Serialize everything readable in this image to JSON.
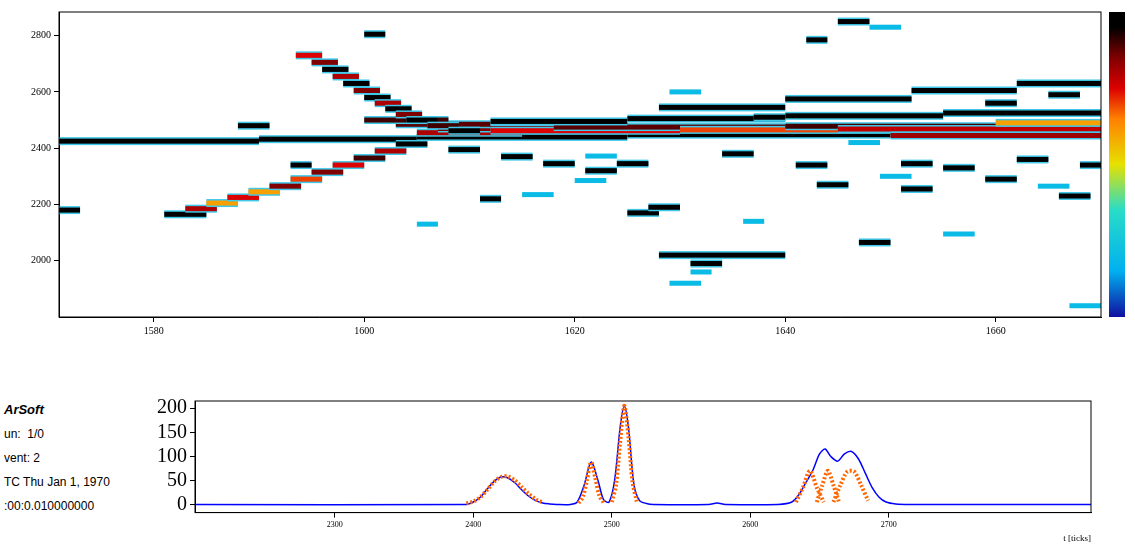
{
  "chart_data": [
    {
      "type": "heatmap",
      "xlim": [
        1571,
        1670
      ],
      "xticks": [
        1580,
        1600,
        1620,
        1640,
        1660
      ],
      "ylim": [
        1800,
        2884
      ],
      "yticks": [
        2000,
        2200,
        2400,
        2600,
        2800
      ],
      "grid": false,
      "colorbar_range": [
        0,
        100
      ],
      "cells": [
        [
          1571,
          1590,
          2425,
          95
        ],
        [
          1590,
          1605,
          2432,
          95
        ],
        [
          1605,
          1625,
          2440,
          95
        ],
        [
          1625,
          1650,
          2448,
          95
        ],
        [
          1650,
          1670,
          2456,
          95
        ],
        [
          1605,
          1615,
          2455,
          80
        ],
        [
          1607,
          1620,
          2470,
          85
        ],
        [
          1612,
          1630,
          2462,
          75
        ],
        [
          1618,
          1640,
          2475,
          88
        ],
        [
          1630,
          1650,
          2465,
          70
        ],
        [
          1640,
          1670,
          2478,
          90
        ],
        [
          1645,
          1670,
          2468,
          78
        ],
        [
          1650,
          1670,
          2445,
          82
        ],
        [
          1660,
          1670,
          2490,
          60
        ],
        [
          1603,
          1612,
          2485,
          88
        ],
        [
          1600,
          1608,
          2500,
          90
        ],
        [
          1612,
          1625,
          2495,
          95
        ],
        [
          1625,
          1640,
          2505,
          95
        ],
        [
          1640,
          1655,
          2515,
          95
        ],
        [
          1655,
          1670,
          2525,
          95
        ],
        [
          1628,
          1640,
          2545,
          95
        ],
        [
          1640,
          1652,
          2575,
          95
        ],
        [
          1652,
          1662,
          2605,
          95
        ],
        [
          1662,
          1670,
          2630,
          95
        ],
        [
          1593.5,
          1596,
          2730,
          75
        ],
        [
          1595,
          1597.5,
          2705,
          85
        ],
        [
          1596,
          1598.5,
          2680,
          95
        ],
        [
          1597,
          1599.5,
          2655,
          80
        ],
        [
          1598,
          1600.5,
          2630,
          95
        ],
        [
          1599,
          1601.5,
          2605,
          85
        ],
        [
          1600,
          1602.5,
          2580,
          95
        ],
        [
          1601,
          1603.5,
          2560,
          80
        ],
        [
          1602,
          1604.5,
          2540,
          95
        ],
        [
          1603,
          1605.5,
          2520,
          85
        ],
        [
          1604,
          1607,
          2500,
          95
        ],
        [
          1606,
          1609,
          2480,
          90
        ],
        [
          1608,
          1611,
          2462,
          95
        ],
        [
          1581,
          1585,
          2165,
          95
        ],
        [
          1583,
          1586,
          2185,
          80
        ],
        [
          1585,
          1588,
          2205,
          60
        ],
        [
          1587,
          1590,
          2225,
          75
        ],
        [
          1589,
          1592,
          2245,
          60
        ],
        [
          1591,
          1594,
          2265,
          85
        ],
        [
          1593,
          1596,
          2290,
          70
        ],
        [
          1595,
          1598,
          2315,
          85
        ],
        [
          1597,
          1600,
          2340,
          75
        ],
        [
          1599,
          1602,
          2365,
          90
        ],
        [
          1601,
          1604,
          2390,
          80
        ],
        [
          1603,
          1606,
          2415,
          95
        ],
        [
          1571,
          1573,
          2180,
          95
        ],
        [
          1588,
          1591,
          2480,
          95
        ],
        [
          1593,
          1595,
          2340,
          95
        ],
        [
          1608,
          1611,
          2395,
          95
        ],
        [
          1613,
          1616,
          2370,
          95
        ],
        [
          1617,
          1620,
          2345,
          95
        ],
        [
          1621,
          1624,
          2372,
          20
        ],
        [
          1624,
          1627,
          2345,
          95
        ],
        [
          1611,
          1613,
          2220,
          95
        ],
        [
          1615,
          1618,
          2235,
          20
        ],
        [
          1605,
          1607,
          2130,
          20
        ],
        [
          1628,
          1640,
          2020,
          95
        ],
        [
          1631,
          1634,
          1990,
          95
        ],
        [
          1631,
          1633,
          1960,
          20
        ],
        [
          1629,
          1632,
          1920,
          20
        ],
        [
          1645,
          1648,
          2850,
          95
        ],
        [
          1648,
          1651,
          2830,
          20
        ],
        [
          1642,
          1644,
          2785,
          95
        ],
        [
          1600,
          1602,
          2805,
          95
        ],
        [
          1629,
          1632,
          2600,
          20
        ],
        [
          1637,
          1640,
          2510,
          95
        ],
        [
          1651,
          1654,
          2345,
          95
        ],
        [
          1655,
          1658,
          2330,
          95
        ],
        [
          1659,
          1662,
          2290,
          95
        ],
        [
          1664,
          1667,
          2265,
          20
        ],
        [
          1662,
          1665,
          2360,
          95
        ],
        [
          1668,
          1670,
          2340,
          95
        ],
        [
          1666,
          1669,
          2230,
          95
        ],
        [
          1647,
          1650,
          2065,
          95
        ],
        [
          1655,
          1658,
          2095,
          20
        ],
        [
          1667,
          1670,
          1840,
          20
        ],
        [
          1643,
          1646,
          2270,
          95
        ],
        [
          1651,
          1654,
          2255,
          95
        ],
        [
          1625,
          1628,
          2170,
          95
        ],
        [
          1659,
          1662,
          2560,
          95
        ],
        [
          1665,
          1668,
          2590,
          95
        ],
        [
          1621,
          1624,
          2320,
          95
        ],
        [
          1641,
          1644,
          2340,
          95
        ],
        [
          1649,
          1652,
          2300,
          20
        ],
        [
          1627,
          1630,
          2190,
          95
        ],
        [
          1634,
          1637,
          2380,
          95
        ],
        [
          1646,
          1649,
          2420,
          20
        ],
        [
          1620,
          1623,
          2285,
          20
        ],
        [
          1636,
          1638,
          2140,
          20
        ]
      ]
    },
    {
      "type": "line",
      "x_label": "t [ticks]",
      "xlim": [
        2199,
        2846
      ],
      "xticks": [
        2300,
        2400,
        2500,
        2600,
        2700
      ],
      "ylim": [
        -17,
        215
      ],
      "yticks": [
        0,
        50,
        100,
        150,
        200
      ],
      "grid": false,
      "annotations": [
        "ArSoft",
        "un:  1/0",
        "vent: 2",
        "TC Thu Jan 1, 1970",
        ":00:0.010000000"
      ],
      "series": [
        {
          "color": "#0000ff",
          "line_style": "solid",
          "x": [
            2199,
            2395,
            2400,
            2405,
            2410,
            2415,
            2420,
            2425,
            2430,
            2435,
            2440,
            2445,
            2450,
            2455,
            2460,
            2470,
            2475,
            2480,
            2485,
            2490,
            2494,
            2498,
            2502,
            2506,
            2509,
            2512,
            2516,
            2520,
            2525,
            2530,
            2570,
            2576,
            2582,
            2620,
            2630,
            2635,
            2640,
            2645,
            2650,
            2654,
            2658,
            2663,
            2668,
            2673,
            2678,
            2683,
            2688,
            2693,
            2698,
            2705,
            2715,
            2846
          ],
          "values": [
            0,
            0,
            5,
            15,
            32,
            48,
            57,
            55,
            45,
            30,
            17,
            8,
            3,
            1,
            0,
            0,
            5,
            40,
            88,
            50,
            10,
            5,
            50,
            160,
            205,
            160,
            40,
            8,
            2,
            0,
            0,
            3,
            0,
            0,
            5,
            20,
            45,
            70,
            105,
            115,
            100,
            90,
            105,
            110,
            95,
            65,
            35,
            15,
            5,
            1,
            0,
            0
          ]
        },
        {
          "color": "#ff6600",
          "line_style": "dotted",
          "x": [
            2395,
            2400,
            2405,
            2410,
            2415,
            2420,
            2425,
            2430,
            2435,
            2440,
            2445,
            2450
          ],
          "values": [
            2,
            6,
            15,
            30,
            47,
            57,
            58,
            50,
            36,
            22,
            11,
            4
          ]
        },
        {
          "color": "#ff6600",
          "line_style": "dotted",
          "x": [
            2476,
            2479,
            2482,
            2485,
            2488,
            2491,
            2494
          ],
          "values": [
            3,
            15,
            50,
            88,
            55,
            18,
            4
          ]
        },
        {
          "color": "#ff6600",
          "line_style": "dotted",
          "x": [
            2500,
            2503,
            2506,
            2509,
            2512,
            2515,
            2518
          ],
          "values": [
            5,
            40,
            130,
            205,
            140,
            45,
            6
          ]
        },
        {
          "color": "#ff6600",
          "line_style": "dotted",
          "x": [
            2633,
            2638,
            2643,
            2648,
            2653
          ],
          "values": [
            5,
            35,
            70,
            35,
            5
          ]
        },
        {
          "color": "#ff6600",
          "line_style": "dotted",
          "x": [
            2648,
            2652,
            2656,
            2660,
            2664
          ],
          "values": [
            5,
            40,
            70,
            40,
            5
          ]
        },
        {
          "color": "#ff6600",
          "line_style": "dotted",
          "x": [
            2660,
            2665,
            2670,
            2675,
            2680,
            2685
          ],
          "values": [
            5,
            40,
            68,
            68,
            40,
            8
          ]
        }
      ]
    }
  ]
}
